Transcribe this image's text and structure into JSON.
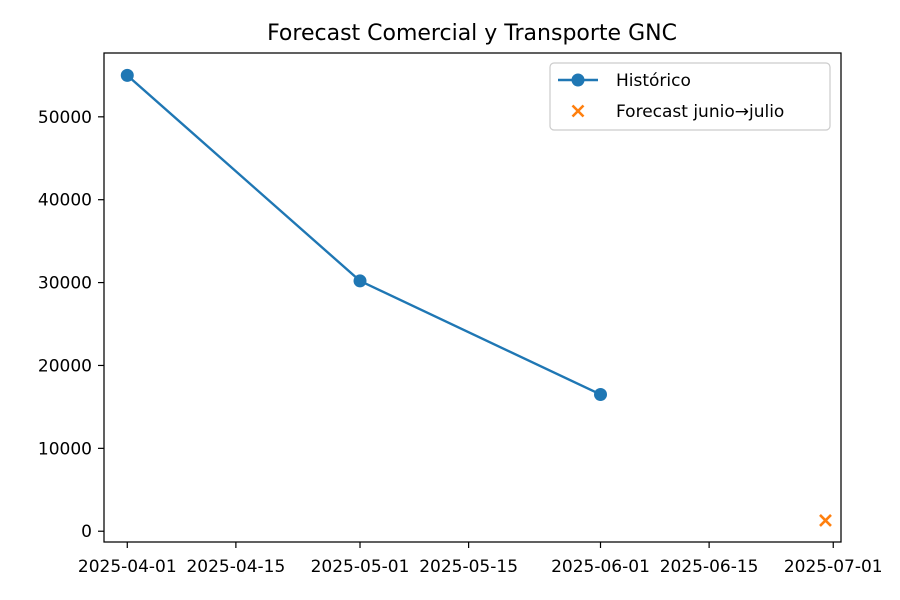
{
  "chart_data": {
    "type": "line",
    "title": "Forecast Comercial y Transporte GNC",
    "xlabel": "",
    "ylabel": "",
    "x_type": "date",
    "xlim": [
      "2025-03-29",
      "2025-07-02"
    ],
    "ylim": [
      -1300,
      57700
    ],
    "grid": false,
    "legend_position": "top-right",
    "x_ticks": [
      "2025-04-01",
      "2025-04-15",
      "2025-05-01",
      "2025-05-15",
      "2025-06-01",
      "2025-06-15",
      "2025-07-01"
    ],
    "y_ticks": [
      0,
      10000,
      20000,
      30000,
      40000,
      50000
    ],
    "series": [
      {
        "name": "Histórico",
        "kind": "line-marker",
        "color": "#1f77b4",
        "x": [
          "2025-04-01",
          "2025-05-01",
          "2025-06-01"
        ],
        "y": [
          55000,
          30200,
          16500
        ]
      },
      {
        "name": "Forecast junio→julio",
        "kind": "scatter-x",
        "color": "#ff7f0e",
        "x": [
          "2025-06-30"
        ],
        "y": [
          1300
        ]
      }
    ]
  }
}
